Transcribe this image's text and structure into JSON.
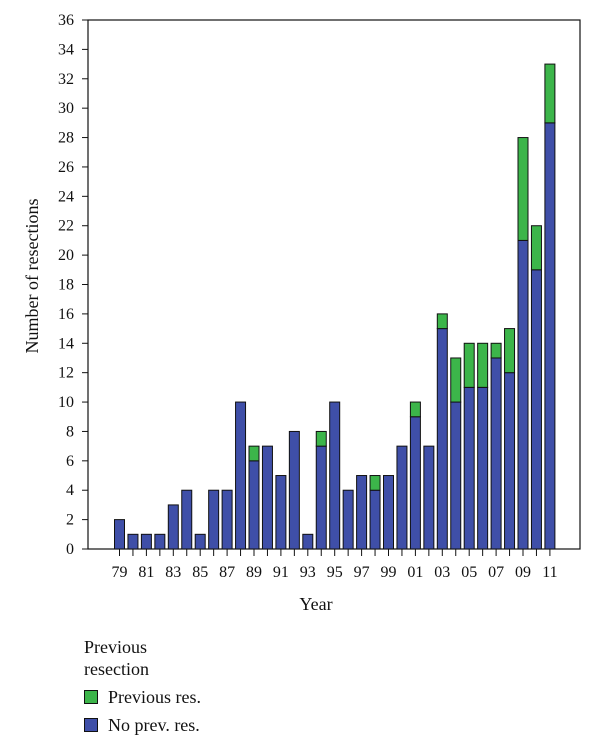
{
  "chart_data": {
    "type": "bar",
    "stacked": true,
    "title": "",
    "xlabel": "Year",
    "ylabel": "Number of resections",
    "ylim": [
      0,
      36
    ],
    "yticks": [
      0,
      2,
      4,
      6,
      8,
      10,
      12,
      14,
      16,
      18,
      20,
      22,
      24,
      26,
      28,
      30,
      32,
      34,
      36
    ],
    "categories": [
      "79",
      "80",
      "81",
      "82",
      "83",
      "84",
      "85",
      "86",
      "87",
      "88",
      "89",
      "90",
      "91",
      "92",
      "93",
      "94",
      "95",
      "96",
      "97",
      "98",
      "99",
      "00",
      "01",
      "02",
      "03",
      "04",
      "05",
      "06",
      "07",
      "08",
      "09",
      "10",
      "11"
    ],
    "xtick_labels": [
      "79",
      "",
      "81",
      "",
      "83",
      "",
      "85",
      "",
      "87",
      "",
      "89",
      "",
      "91",
      "",
      "93",
      "",
      "95",
      "",
      "97",
      "",
      "99",
      "",
      "01",
      "",
      "03",
      "",
      "05",
      "",
      "07",
      "",
      "09",
      "",
      "11"
    ],
    "series": [
      {
        "name": "No prev. res.",
        "color": "#3f4fa8",
        "values": [
          2,
          1,
          1,
          1,
          3,
          4,
          1,
          4,
          4,
          10,
          6,
          7,
          5,
          8,
          1,
          7,
          10,
          4,
          5,
          4,
          5,
          7,
          9,
          7,
          15,
          10,
          11,
          11,
          13,
          12,
          21,
          19,
          29
        ]
      },
      {
        "name": "Previous res.",
        "color": "#3cb54a",
        "values": [
          0,
          0,
          0,
          0,
          0,
          0,
          0,
          0,
          0,
          0,
          1,
          0,
          0,
          0,
          0,
          1,
          0,
          0,
          0,
          1,
          0,
          0,
          1,
          0,
          1,
          3,
          3,
          3,
          1,
          3,
          7,
          3,
          4
        ]
      }
    ],
    "legend": {
      "title": "Previous resection",
      "position": "bottom-left",
      "items": [
        {
          "label": "Previous res.",
          "color": "#3cb54a"
        },
        {
          "label": "No prev. res.",
          "color": "#3f4fa8"
        }
      ]
    }
  }
}
